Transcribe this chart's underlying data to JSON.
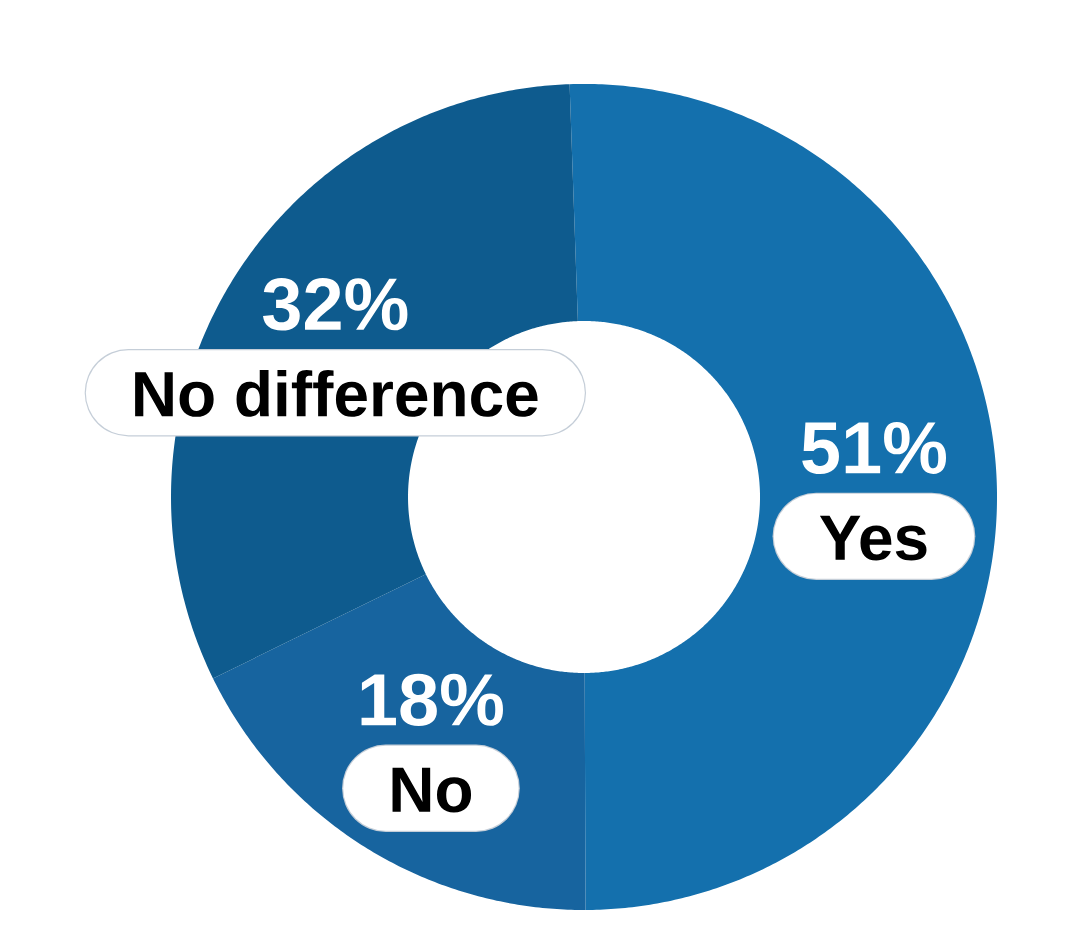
{
  "chart_data": {
    "type": "donut",
    "categories": [
      "Yes",
      "No",
      "No difference"
    ],
    "values": [
      51,
      18,
      32
    ],
    "colors": [
      "#1470ad",
      "#17649f",
      "#0e5b8e"
    ],
    "value_labels": [
      "51%",
      "18%",
      "32%"
    ]
  }
}
